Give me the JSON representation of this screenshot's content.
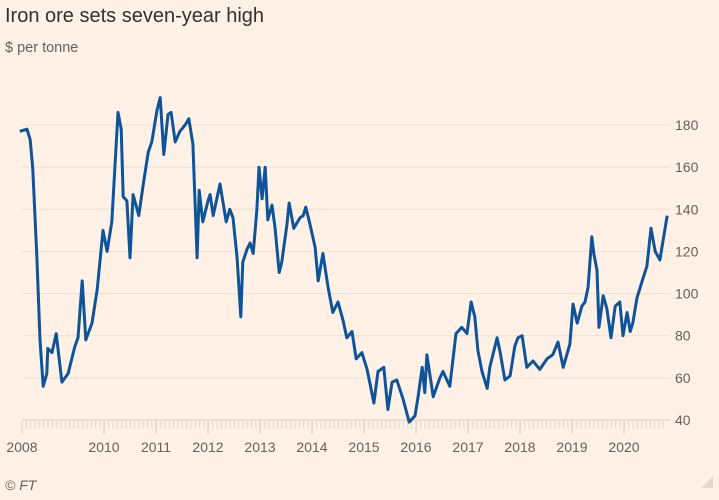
{
  "title": "Iron ore sets seven-year high",
  "subtitle": "$ per tonne",
  "source": "© FT",
  "colors": {
    "background": "#fff1e5",
    "line": "#0f5499",
    "grid": "#ecdfd5",
    "text": "#66605c"
  },
  "chart_data": {
    "type": "line",
    "title": "Iron ore sets seven-year high",
    "ylabel": "$ per tonne",
    "xlabel": "",
    "xlim": [
      2008.38,
      2020.85
    ],
    "ylim": [
      40,
      190
    ],
    "x_ticks": [
      "2008",
      "2010",
      "2011",
      "2012",
      "2013",
      "2014",
      "2015",
      "2016",
      "2017",
      "2018",
      "2019",
      "2020"
    ],
    "y_ticks": [
      "40",
      "60",
      "80",
      "100",
      "120",
      "140",
      "160",
      "180"
    ],
    "y_axis_side": "right",
    "grid": true,
    "legend": "none",
    "series": [
      {
        "x": [
          2008.38,
          2008.52,
          2008.58,
          2008.63,
          2008.71,
          2008.77,
          2008.83,
          2008.9,
          2008.92,
          2009.0,
          2009.08,
          2009.19,
          2009.31,
          2009.44,
          2009.5,
          2009.58,
          2009.65,
          2009.77,
          2009.87,
          2009.98,
          2010.06,
          2010.15,
          2010.21,
          2010.27,
          2010.33,
          2010.37,
          2010.44,
          2010.5,
          2010.56,
          2010.67,
          2010.75,
          2010.85,
          2010.92,
          2011.02,
          2011.08,
          2011.15,
          2011.23,
          2011.29,
          2011.37,
          2011.46,
          2011.56,
          2011.63,
          2011.71,
          2011.79,
          2011.83,
          2011.9,
          2012.0,
          2012.04,
          2012.1,
          2012.23,
          2012.35,
          2012.42,
          2012.48,
          2012.56,
          2012.63,
          2012.67,
          2012.75,
          2012.81,
          2012.87,
          2012.94,
          2012.98,
          2013.04,
          2013.1,
          2013.15,
          2013.23,
          2013.29,
          2013.37,
          2013.42,
          2013.52,
          2013.56,
          2013.65,
          2013.77,
          2013.83,
          2013.88,
          2013.96,
          2014.06,
          2014.12,
          2014.21,
          2014.31,
          2014.4,
          2014.5,
          2014.6,
          2014.67,
          2014.77,
          2014.85,
          2014.96,
          2015.06,
          2015.19,
          2015.27,
          2015.38,
          2015.46,
          2015.54,
          2015.63,
          2015.75,
          2015.87,
          2015.98,
          2016.04,
          2016.12,
          2016.17,
          2016.21,
          2016.33,
          2016.46,
          2016.52,
          2016.65,
          2016.77,
          2016.88,
          2016.98,
          2017.06,
          2017.13,
          2017.19,
          2017.27,
          2017.37,
          2017.42,
          2017.56,
          2017.62,
          2017.71,
          2017.81,
          2017.9,
          2017.96,
          2018.04,
          2018.13,
          2018.25,
          2018.38,
          2018.52,
          2018.63,
          2018.73,
          2018.83,
          2018.96,
          2019.02,
          2019.1,
          2019.19,
          2019.25,
          2019.31,
          2019.38,
          2019.42,
          2019.48,
          2019.52,
          2019.6,
          2019.67,
          2019.75,
          2019.83,
          2019.92,
          2019.98,
          2020.06,
          2020.12,
          2020.17,
          2020.25,
          2020.35,
          2020.44,
          2020.52,
          2020.6,
          2020.69,
          2020.75,
          2020.83
        ],
        "y": [
          177,
          178,
          173,
          159,
          117,
          78,
          56,
          62,
          74,
          72,
          81,
          58,
          62,
          75,
          79,
          106,
          78,
          86,
          102,
          130,
          120,
          134,
          160,
          186,
          178,
          146,
          144,
          117,
          147,
          137,
          151,
          167,
          172,
          187,
          193,
          166,
          185,
          186,
          172,
          177,
          180,
          183,
          171,
          117,
          149,
          134,
          144,
          147,
          137,
          152,
          134,
          140,
          136,
          117,
          89,
          115,
          121,
          124,
          119,
          140,
          160,
          145,
          160,
          135,
          142,
          131,
          110,
          115,
          133,
          143,
          131,
          136,
          137,
          141,
          133,
          122,
          106,
          119,
          103,
          91,
          96,
          87,
          79,
          82,
          69,
          72,
          64,
          48,
          63,
          65,
          45,
          58,
          59,
          50,
          39,
          42,
          51,
          65,
          53,
          71,
          51,
          60,
          63,
          56,
          81,
          84,
          81,
          96,
          89,
          73,
          63,
          55,
          65,
          79,
          72,
          59,
          61,
          75,
          79,
          80,
          65,
          68,
          64,
          69,
          71,
          77,
          65,
          76,
          95,
          86,
          94,
          96,
          103,
          127,
          119,
          111,
          84,
          99,
          93,
          79,
          94,
          96,
          80,
          91,
          82,
          86,
          98,
          106,
          113,
          131,
          120,
          116,
          125,
          137
        ]
      }
    ]
  }
}
